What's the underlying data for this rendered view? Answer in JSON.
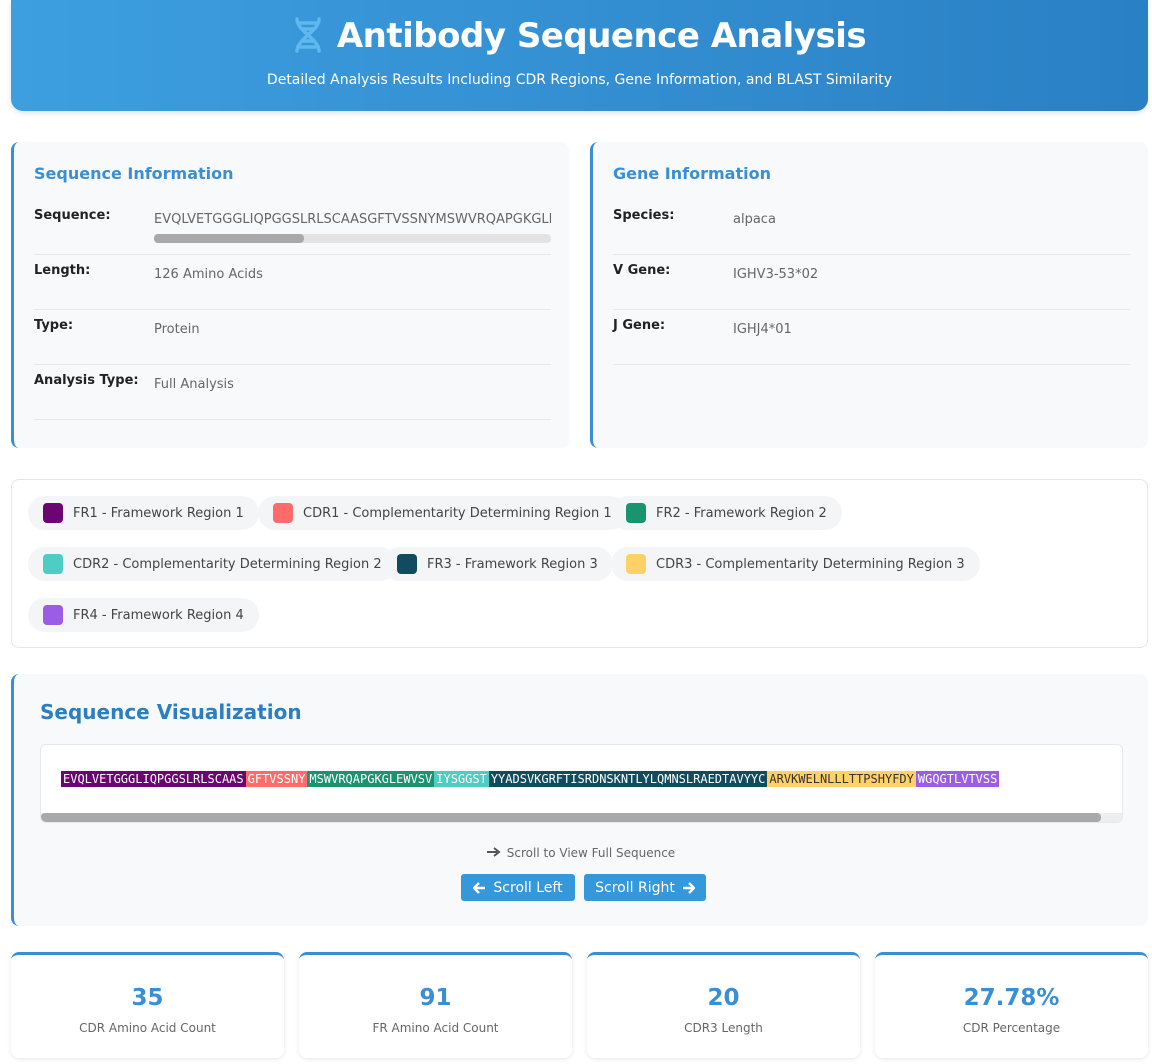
{
  "header": {
    "title": "Antibody Sequence Analysis",
    "subtitle": "Detailed Analysis Results Including CDR Regions, Gene Information, and BLAST Similarity"
  },
  "sequence_info": {
    "title": "Sequence Information",
    "rows": [
      {
        "label": "Sequence:",
        "value": "EVQLVETGGGLIQPGGSLRLSCAASGFTVSSNYMSWVRQAPGKGLEWVSVIYSGGSTYYADSVKGRFTISRDNSKNTLYLQMNSLRAEDTAVYYCARVKWELNLLLTTPSHYFDYWGQGTLVTVSS"
      },
      {
        "label": "Length:",
        "value": "126 Amino Acids"
      },
      {
        "label": "Type:",
        "value": "Protein"
      },
      {
        "label": "Analysis Type:",
        "value": "Full Analysis"
      }
    ]
  },
  "gene_info": {
    "title": "Gene Information",
    "rows": [
      {
        "label": "Species:",
        "value": "alpaca"
      },
      {
        "label": "V Gene:",
        "value": "IGHV3-53*02"
      },
      {
        "label": "J Gene:",
        "value": "IGHJ4*01"
      }
    ]
  },
  "legend": [
    {
      "label": "FR1 - Framework Region 1",
      "color": "#6a0572"
    },
    {
      "label": "CDR1 - Complementarity Determining Region 1",
      "color": "#ff6b6b"
    },
    {
      "label": "FR2 - Framework Region 2",
      "color": "#1a936f"
    },
    {
      "label": "CDR2 - Complementarity Determining Region 2",
      "color": "#4ecdc4"
    },
    {
      "label": "FR3 - Framework Region 3",
      "color": "#114b5f"
    },
    {
      "label": "CDR3 - Complementarity Determining Region 3",
      "color": "#ffd166"
    },
    {
      "label": "FR4 - Framework Region 4",
      "color": "#9b5de5"
    }
  ],
  "visualization": {
    "title": "Sequence Visualization",
    "segments": [
      {
        "text": "EVQLVETGGGLIQPGGSLRLSCAAS",
        "color": "#6a0572"
      },
      {
        "text": "GFTVSSNY",
        "color": "#ff6b6b"
      },
      {
        "text": "MSWVRQAPGKGLEWVSV",
        "color": "#1a936f"
      },
      {
        "text": "IYSGGST",
        "color": "#4ecdc4"
      },
      {
        "text": "YYADSVKGRFTISRDNSKNTLYLQMNSLRAEDTAVYYC",
        "color": "#114b5f"
      },
      {
        "text": "ARVKWELNLLLTTPSHYFDY",
        "color": "#ffd166"
      },
      {
        "text": "WGQGTLVTVSS",
        "color": "#9b5de5"
      }
    ],
    "note": "Scroll to View Full Sequence",
    "buttons": [
      "Scroll Left",
      "Scroll Right"
    ]
  },
  "stats": [
    {
      "value": "35",
      "label": "CDR Amino Acid Count"
    },
    {
      "value": "91",
      "label": "FR Amino Acid Count"
    },
    {
      "value": "20",
      "label": "CDR3 Length"
    },
    {
      "value": "27.78%",
      "label": "CDR Percentage"
    }
  ]
}
